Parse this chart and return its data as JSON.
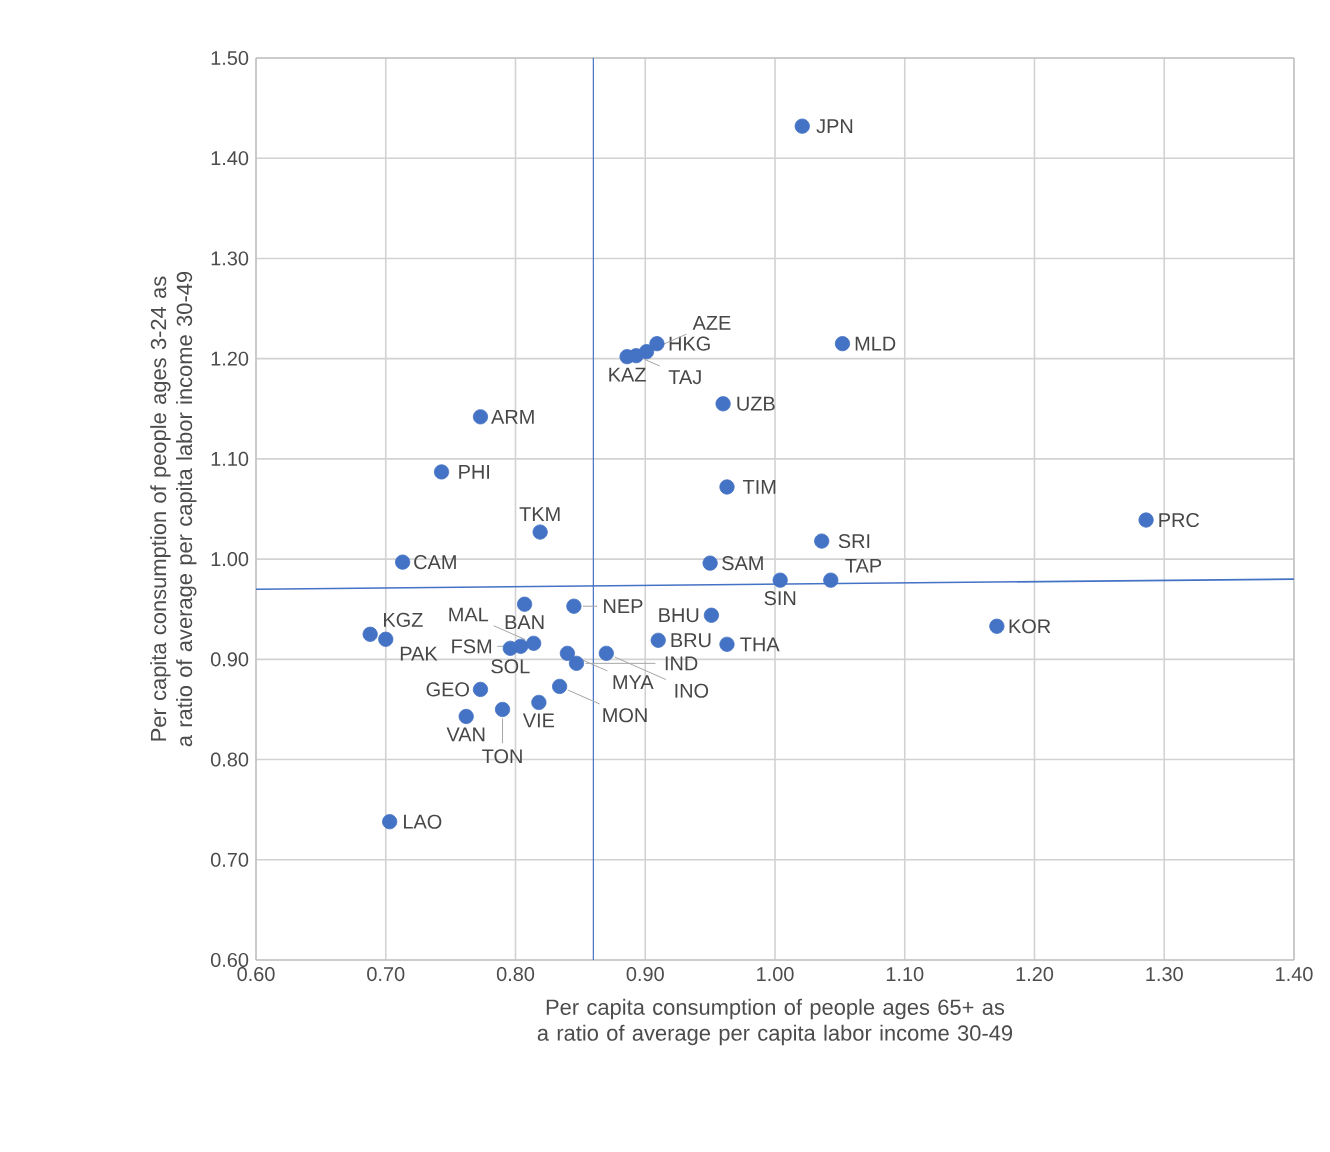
{
  "chart_data": {
    "type": "scatter",
    "xlabel": "Per capita consumption of people ages 65+ as a ratio of  average per capita labor income 30-49",
    "ylabel": "Per capita consumption of people ages 3-24 as a ratio of average per capita labor income 30-49",
    "xlim": [
      0.6,
      1.4
    ],
    "ylim": [
      0.6,
      1.5
    ],
    "xticks": [
      {
        "value": 0.6,
        "label": "0.60"
      },
      {
        "value": 0.7,
        "label": "0.70"
      },
      {
        "value": 0.8,
        "label": "0.80"
      },
      {
        "value": 0.9,
        "label": "0.90"
      },
      {
        "value": 1.0,
        "label": "1.00"
      },
      {
        "value": 1.1,
        "label": "1.10"
      },
      {
        "value": 1.2,
        "label": "1.20"
      },
      {
        "value": 1.3,
        "label": "1.30"
      },
      {
        "value": 1.4,
        "label": "1.40"
      }
    ],
    "yticks": [
      {
        "value": 0.6,
        "label": "0.60"
      },
      {
        "value": 0.7,
        "label": "0.70"
      },
      {
        "value": 0.8,
        "label": "0.80"
      },
      {
        "value": 0.9,
        "label": "0.90"
      },
      {
        "value": 1.0,
        "label": "1.00"
      },
      {
        "value": 1.1,
        "label": "1.10"
      },
      {
        "value": 1.2,
        "label": "1.20"
      },
      {
        "value": 1.3,
        "label": "1.30"
      },
      {
        "value": 1.4,
        "label": "1.40"
      },
      {
        "value": 1.5,
        "label": "1.50"
      }
    ],
    "grid": true,
    "series": [
      {
        "color": "#4472c4",
        "x": [
          1.021,
          1.052,
          0.909,
          0.886,
          0.893,
          0.901,
          0.96,
          0.773,
          0.743,
          0.963,
          0.819,
          0.713,
          0.95,
          1.036,
          1.286,
          1.004,
          1.043,
          0.951,
          1.171,
          0.963,
          0.807,
          0.845,
          0.91,
          0.688,
          0.7,
          0.796,
          0.804,
          0.814,
          0.84,
          0.847,
          0.87,
          0.834,
          0.773,
          0.818,
          0.762,
          0.79,
          0.703
        ],
        "values": [
          1.432,
          1.215,
          1.215,
          1.202,
          1.203,
          1.207,
          1.155,
          1.142,
          1.087,
          1.072,
          1.027,
          0.997,
          0.996,
          1.018,
          1.039,
          0.979,
          0.979,
          0.944,
          0.933,
          0.915,
          0.955,
          0.953,
          0.919,
          0.925,
          0.92,
          0.911,
          0.913,
          0.916,
          0.906,
          0.896,
          0.906,
          0.873,
          0.87,
          0.857,
          0.843,
          0.85,
          0.738
        ]
      },
      {
        "type": "line",
        "color": "#4472c4",
        "x": [
          0.6,
          1.4
        ],
        "values": [
          0.97,
          0.98
        ]
      }
    ],
    "ref_lines": [
      {
        "axis": "x",
        "value": 0.86,
        "color": "#4472c4"
      }
    ],
    "annotations": [
      {
        "text": "JPN",
        "x": 1.021,
        "y": 1.432
      },
      {
        "text": "MLD",
        "x": 1.052,
        "y": 1.215
      },
      {
        "text": "HKG",
        "x": 0.909,
        "y": 1.215
      },
      {
        "text": "KAZ",
        "x": 0.886,
        "y": 1.202
      },
      {
        "text": "TAJ",
        "x": 0.893,
        "y": 1.203
      },
      {
        "text": "AZE",
        "x": 0.901,
        "y": 1.207
      },
      {
        "text": "UZB",
        "x": 0.96,
        "y": 1.155
      },
      {
        "text": "ARM",
        "x": 0.773,
        "y": 1.142
      },
      {
        "text": "PHI",
        "x": 0.743,
        "y": 1.087
      },
      {
        "text": "TIM",
        "x": 0.963,
        "y": 1.072
      },
      {
        "text": "TKM",
        "x": 0.819,
        "y": 1.027
      },
      {
        "text": "CAM",
        "x": 0.713,
        "y": 0.997
      },
      {
        "text": "SAM",
        "x": 0.95,
        "y": 0.996
      },
      {
        "text": "SRI",
        "x": 1.036,
        "y": 1.018
      },
      {
        "text": "PRC",
        "x": 1.286,
        "y": 1.039
      },
      {
        "text": "SIN",
        "x": 1.004,
        "y": 0.979
      },
      {
        "text": "TAP",
        "x": 1.043,
        "y": 0.979
      },
      {
        "text": "BHU",
        "x": 0.951,
        "y": 0.944
      },
      {
        "text": "KOR",
        "x": 1.171,
        "y": 0.933
      },
      {
        "text": "THA",
        "x": 0.963,
        "y": 0.915
      },
      {
        "text": "BAN",
        "x": 0.807,
        "y": 0.955
      },
      {
        "text": "NEP",
        "x": 0.845,
        "y": 0.953
      },
      {
        "text": "BRU",
        "x": 0.91,
        "y": 0.919
      },
      {
        "text": "KGZ",
        "x": 0.688,
        "y": 0.925
      },
      {
        "text": "PAK",
        "x": 0.7,
        "y": 0.92
      },
      {
        "text": "SOL",
        "x": 0.796,
        "y": 0.911
      },
      {
        "text": "FSM",
        "x": 0.804,
        "y": 0.913
      },
      {
        "text": "MAL",
        "x": 0.814,
        "y": 0.916
      },
      {
        "text": "MYA",
        "x": 0.84,
        "y": 0.906
      },
      {
        "text": "IND",
        "x": 0.847,
        "y": 0.896
      },
      {
        "text": "INO",
        "x": 0.87,
        "y": 0.906
      },
      {
        "text": "MON",
        "x": 0.834,
        "y": 0.873
      },
      {
        "text": "GEO",
        "x": 0.773,
        "y": 0.87
      },
      {
        "text": "VIE",
        "x": 0.818,
        "y": 0.857
      },
      {
        "text": "VAN",
        "x": 0.762,
        "y": 0.843
      },
      {
        "text": "TON",
        "x": 0.79,
        "y": 0.85
      },
      {
        "text": "LAO",
        "x": 0.703,
        "y": 0.738
      }
    ]
  }
}
